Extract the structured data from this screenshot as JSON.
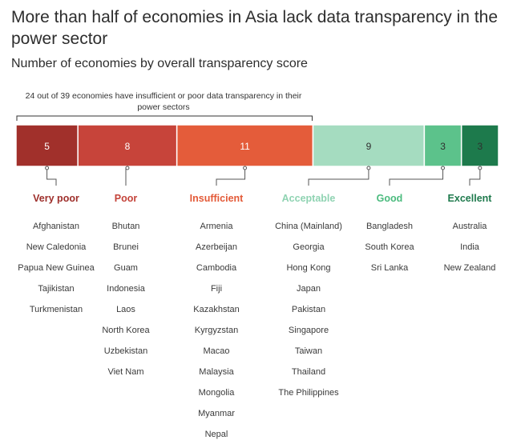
{
  "title": "More than half of economies in Asia lack data transparency in the power sector",
  "subtitle": "Number of economies by overall transparency score",
  "annotation": "24 out of 39 economies have insufficient or poor data transparency in their power sectors",
  "chart_data": {
    "type": "bar",
    "orientation": "horizontal-stacked",
    "title": "Number of economies by overall transparency score",
    "total": 39,
    "categories": [
      {
        "label": "Very poor",
        "value": 5,
        "color": "#a1302b",
        "label_color": "#9e2f2b",
        "value_color": "#ffffff",
        "countries": [
          "Afghanistan",
          "New Caledonia",
          "Papua New Guinea",
          "Tajikistan",
          "Turkmenistan"
        ]
      },
      {
        "label": "Poor",
        "value": 8,
        "color": "#c7443a",
        "label_color": "#c4433a",
        "value_color": "#ffffff",
        "countries": [
          "Bhutan",
          "Brunei",
          "Guam",
          "Indonesia",
          "Laos",
          "North Korea",
          "Uzbekistan",
          "Viet Nam"
        ]
      },
      {
        "label": "Insufficient",
        "value": 11,
        "color": "#e45c3a",
        "label_color": "#e35a38",
        "value_color": "#ffffff",
        "countries": [
          "Armenia",
          "Azerbeijan",
          "Cambodia",
          "Fiji",
          "Kazakhstan",
          "Kyrgyzstan",
          "Macao",
          "Malaysia",
          "Mongolia",
          "Myanmar",
          "Nepal"
        ]
      },
      {
        "label": "Acceptable",
        "value": 9,
        "color": "#a5dcc0",
        "label_color": "#8fd3b2",
        "value_color": "#2f2f2f",
        "countries": [
          "China (Mainland)",
          "Georgia",
          "Hong Kong",
          "Japan",
          "Pakistan",
          "Singapore",
          "Taiwan",
          "Thailand",
          "The Philippines"
        ]
      },
      {
        "label": "Good",
        "value": 3,
        "color": "#5cc28b",
        "label_color": "#4bbb7e",
        "value_color": "#2f2f2f",
        "countries": [
          "Bangladesh",
          "South Korea",
          "Sri Lanka"
        ]
      },
      {
        "label": "Excellent",
        "value": 3,
        "color": "#1d7a4c",
        "label_color": "#1f7a4d",
        "value_color": "#2f2f2f",
        "countries": [
          "Australia",
          "India",
          "New Zealand"
        ]
      }
    ],
    "bracket_covers": 24
  }
}
